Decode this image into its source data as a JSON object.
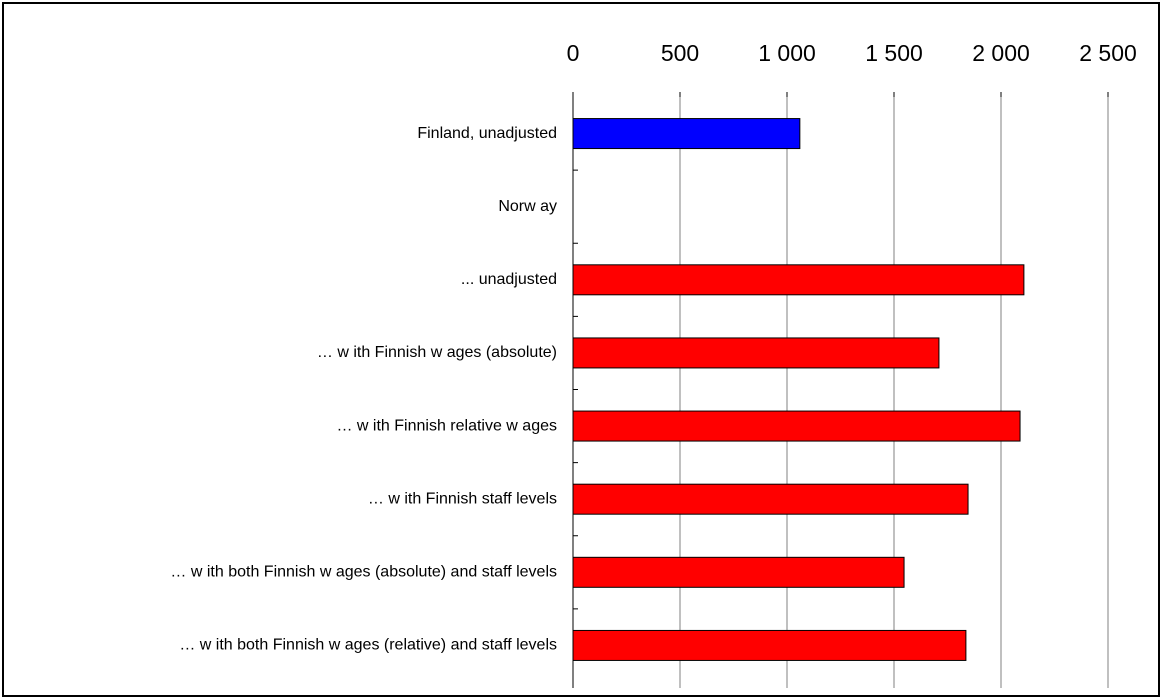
{
  "chart_data": {
    "type": "hbar",
    "categories": [
      "Finland, unadjusted",
      "Norw ay",
      "... unadjusted",
      "… w ith Finnish w ages (absolute)",
      "… w ith Finnish relative w ages",
      "… w ith Finnish staff levels",
      "… w ith both Finnish w ages (absolute) and staff levels",
      "… w ith both Finnish w ages (relative) and staff levels"
    ],
    "values": [
      1060,
      null,
      2107,
      1710,
      2089,
      1846,
      1547,
      1836
    ],
    "colors": [
      "#0000ff",
      "#ff0000",
      "#ff0000",
      "#ff0000",
      "#ff0000",
      "#ff0000",
      "#ff0000",
      "#ff0000"
    ],
    "xlim": [
      0,
      2500
    ],
    "xticks": [
      0,
      500,
      {
        "value": 1000,
        "label": "1 000"
      },
      {
        "value": 1500,
        "label": "1 500"
      },
      {
        "value": 2000,
        "label": "2 000"
      },
      {
        "value": 2500,
        "label": "2 500"
      }
    ],
    "grid": true
  }
}
